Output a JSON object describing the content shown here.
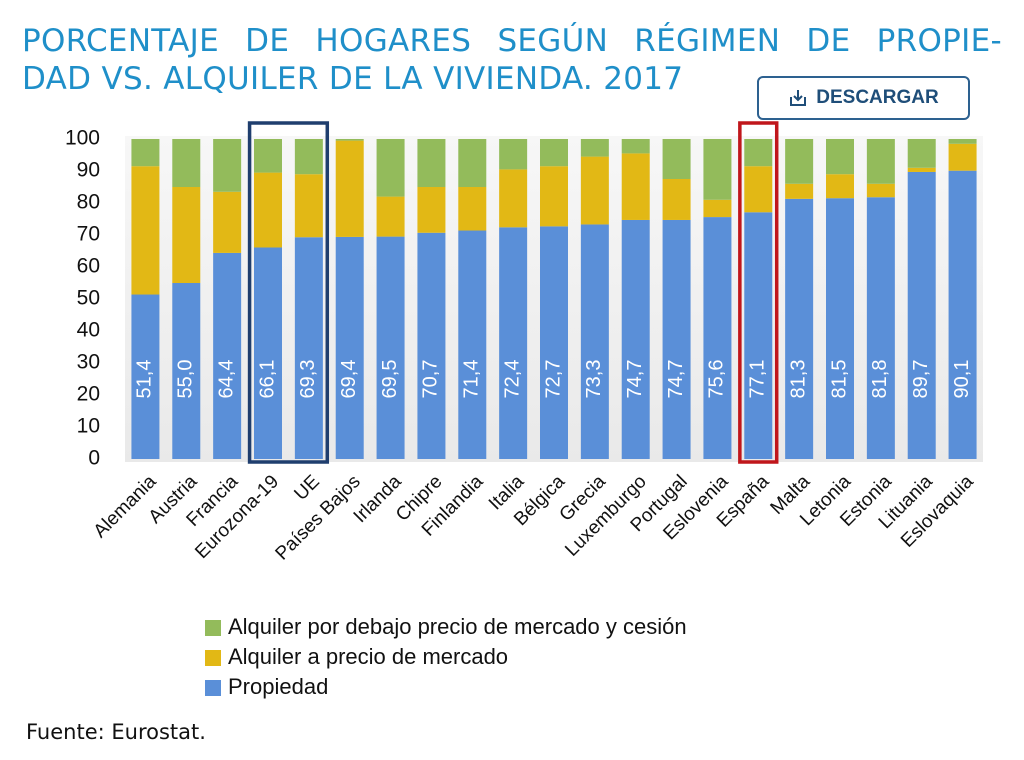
{
  "chart_data": {
    "type": "stacked_bar",
    "title": [
      "PORCENTAJE DE HOGARES SEGÚN RÉGIMEN DE PROPIE-",
      "DAD VS. ALQUILER DE LA VIVIENDA. 2017"
    ],
    "categories": [
      "Alemania",
      "Austria",
      "Francia",
      "Eurozona-19",
      "UE",
      "Países Bajos",
      "Irlanda",
      "Chipre",
      "Finlandia",
      "Italia",
      "Bélgica",
      "Grecia",
      "Luxemburgo",
      "Portugal",
      "Eslovenia",
      "España",
      "Malta",
      "Letonia",
      "Estonia",
      "Lituania",
      "Eslovaquia"
    ],
    "series": [
      {
        "name": "Propiedad",
        "color": "#5a8fd8",
        "values": [
          51.4,
          55.0,
          64.4,
          66.1,
          69.3,
          69.4,
          69.5,
          70.7,
          71.4,
          72.4,
          72.7,
          73.3,
          74.7,
          74.7,
          75.6,
          77.1,
          81.3,
          81.5,
          81.8,
          89.7,
          90.1
        ],
        "value_labels": [
          "51,4",
          "55,0",
          "64,4",
          "66,1",
          "69,3",
          "69,4",
          "69,5",
          "70,7",
          "71,4",
          "72,4",
          "72,7",
          "73,3",
          "74,7",
          "74,7",
          "75,6",
          "77,1",
          "81,3",
          "81,5",
          "81,8",
          "89,7",
          "90,1"
        ]
      },
      {
        "name": "Alquiler a precio de mercado",
        "color": "#e2b815",
        "values": [
          40.1,
          30.0,
          19.1,
          23.4,
          19.7,
          30.1,
          12.5,
          14.3,
          13.6,
          18.1,
          18.8,
          21.2,
          20.8,
          12.8,
          5.4,
          14.4,
          4.7,
          7.5,
          4.2,
          1.3,
          8.4
        ]
      },
      {
        "name": "Alquiler por debajo precio de mercado y cesión",
        "color": "#93bb5b",
        "values": [
          8.5,
          15.0,
          16.5,
          10.5,
          11.0,
          0.5,
          18.0,
          15.0,
          15.0,
          9.5,
          8.5,
          5.5,
          4.5,
          12.5,
          19.0,
          8.5,
          14.0,
          11.0,
          14.0,
          9.0,
          1.5
        ]
      }
    ],
    "ylim": [
      0,
      100
    ],
    "yticks": [
      0,
      10,
      20,
      30,
      40,
      50,
      60,
      70,
      80,
      90,
      100
    ],
    "grid": false,
    "source": "Fuente: Eurostat."
  },
  "download_button": "DESCARGAR"
}
